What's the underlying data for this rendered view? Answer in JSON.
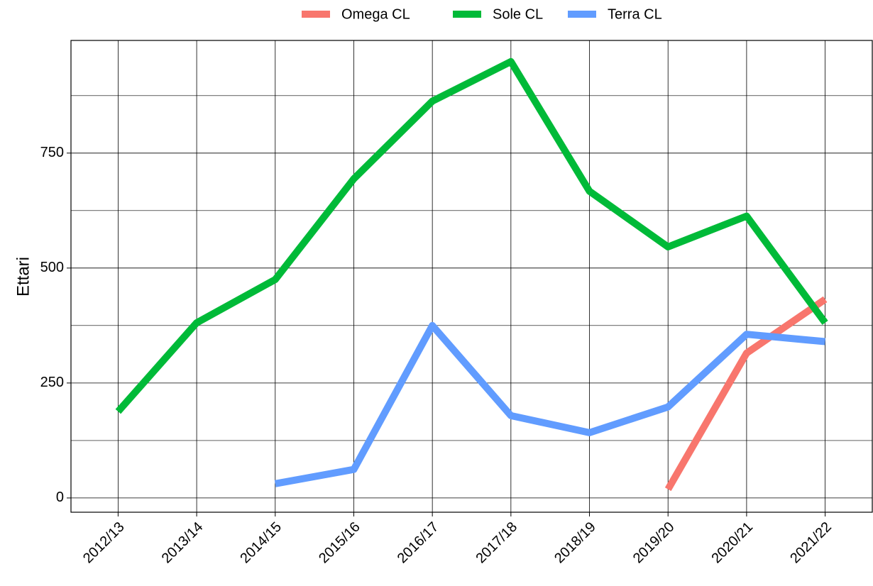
{
  "chart_data": {
    "type": "line",
    "y_label": "Ettari",
    "categories": [
      "2012/13",
      "2013/14",
      "2014/15",
      "2015/16",
      "2016/17",
      "2017/18",
      "2018/19",
      "2019/20",
      "2020/21",
      "2021/22"
    ],
    "series": [
      {
        "name": "Omega CL",
        "color": "#f8766d",
        "values": [
          null,
          null,
          null,
          null,
          null,
          null,
          null,
          19,
          315,
          432
        ]
      },
      {
        "name": "Sole CL",
        "color": "#00ba38",
        "values": [
          188,
          381,
          475,
          694,
          863,
          949,
          667,
          546,
          613,
          381
        ]
      },
      {
        "name": "Terra CL",
        "color": "#619cff",
        "values": [
          null,
          null,
          31,
          62,
          375,
          179,
          142,
          198,
          356,
          340
        ]
      }
    ],
    "ylim": [
      -31,
      995
    ],
    "yticks": [
      0,
      250,
      500,
      750
    ],
    "y_minor_grid": [
      125,
      375,
      625,
      875
    ],
    "grid": true,
    "legend": "top"
  }
}
